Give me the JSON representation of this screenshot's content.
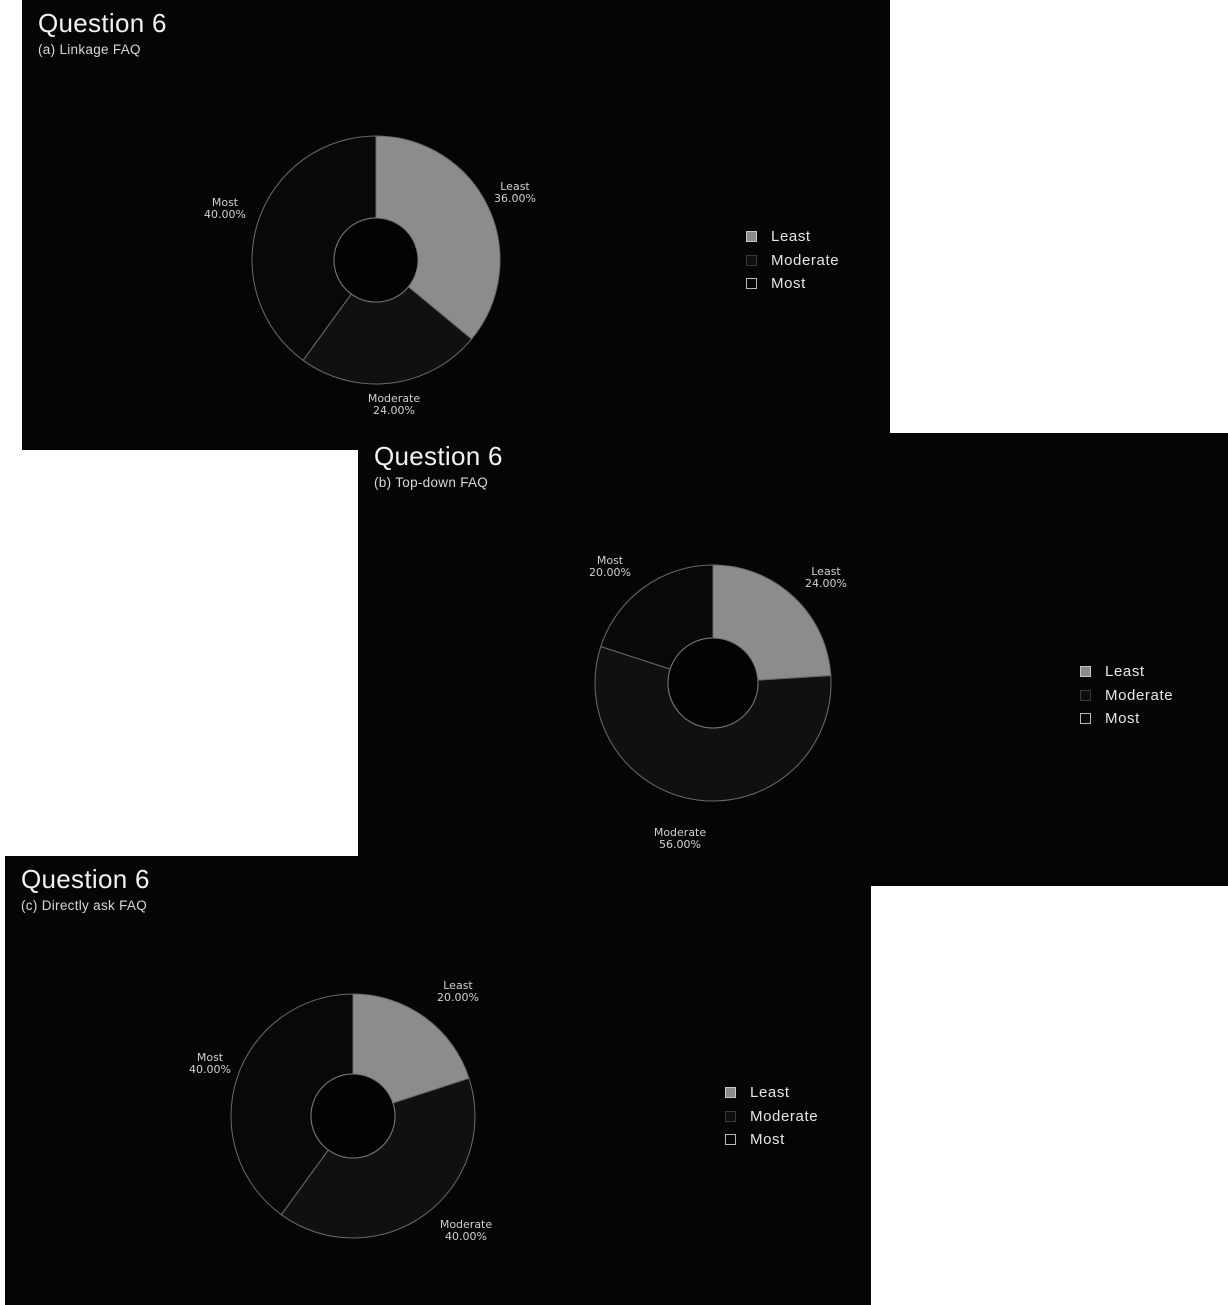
{
  "chart_data": [
    {
      "type": "pie",
      "title": "Question 6",
      "subtitle": "(a) Linkage FAQ",
      "categories": [
        "Least",
        "Moderate",
        "Most"
      ],
      "values": [
        36.0,
        24.0,
        40.0
      ],
      "value_labels": [
        "36.00%",
        "24.00%",
        "40.00%"
      ],
      "legend": [
        "Least",
        "Moderate",
        "Most"
      ],
      "legend_position": "right",
      "colors": {
        "Least": "#8c8c8c",
        "Moderate": "#101010",
        "Most": "#080808"
      }
    },
    {
      "type": "pie",
      "title": "Question 6",
      "subtitle": "(b) Top-down FAQ",
      "categories": [
        "Least",
        "Moderate",
        "Most"
      ],
      "values": [
        24.0,
        56.0,
        20.0
      ],
      "value_labels": [
        "24.00%",
        "56.00%",
        "20.00%"
      ],
      "legend": [
        "Least",
        "Moderate",
        "Most"
      ],
      "legend_position": "right",
      "colors": {
        "Least": "#8c8c8c",
        "Moderate": "#101010",
        "Most": "#080808"
      }
    },
    {
      "type": "pie",
      "title": "Question 6",
      "subtitle": "(c) Directly ask FAQ",
      "categories": [
        "Least",
        "Moderate",
        "Most"
      ],
      "values": [
        20.0,
        40.0,
        40.0
      ],
      "value_labels": [
        "20.00%",
        "40.00%",
        "40.00%"
      ],
      "legend": [
        "Least",
        "Moderate",
        "Most"
      ],
      "legend_position": "right",
      "colors": {
        "Least": "#8c8c8c",
        "Moderate": "#101010",
        "Most": "#080808"
      }
    }
  ]
}
